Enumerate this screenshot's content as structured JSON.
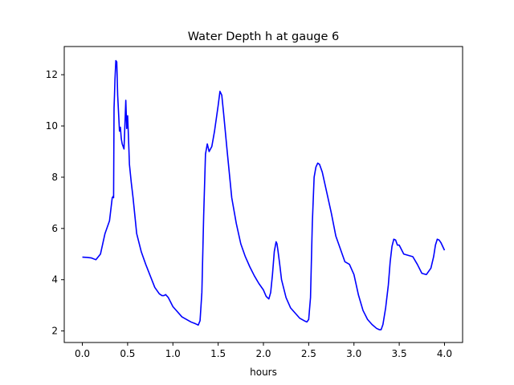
{
  "chart_data": {
    "type": "line",
    "title": "Water Depth h at gauge 6",
    "xlabel": "hours",
    "ylabel": "",
    "xlim": [
      -0.2,
      4.2
    ],
    "ylim": [
      1.55,
      13.1
    ],
    "xticks": [
      0.0,
      0.5,
      1.0,
      1.5,
      2.0,
      2.5,
      3.0,
      3.5,
      4.0
    ],
    "xtick_labels": [
      "0.0",
      "0.5",
      "1.0",
      "1.5",
      "2.0",
      "2.5",
      "3.0",
      "3.5",
      "4.0"
    ],
    "yticks": [
      2,
      4,
      6,
      8,
      10,
      12
    ],
    "ytick_labels": [
      "2",
      "4",
      "6",
      "8",
      "10",
      "12"
    ],
    "grid": false,
    "series": [
      {
        "color": "#0000ff",
        "x": [
          0.0,
          0.05,
          0.1,
          0.15,
          0.2,
          0.25,
          0.3,
          0.33,
          0.34,
          0.345,
          0.35,
          0.355,
          0.36,
          0.37,
          0.38,
          0.39,
          0.4,
          0.41,
          0.42,
          0.43,
          0.44,
          0.46,
          0.48,
          0.49,
          0.5,
          0.51,
          0.52,
          0.54,
          0.56,
          0.58,
          0.6,
          0.65,
          0.7,
          0.8,
          0.85,
          0.88,
          0.9,
          0.92,
          0.95,
          1.0,
          1.1,
          1.2,
          1.25,
          1.28,
          1.3,
          1.32,
          1.34,
          1.36,
          1.38,
          1.4,
          1.43,
          1.46,
          1.5,
          1.52,
          1.54,
          1.56,
          1.6,
          1.65,
          1.7,
          1.75,
          1.8,
          1.85,
          1.9,
          1.95,
          2.0,
          2.03,
          2.06,
          2.08,
          2.1,
          2.12,
          2.14,
          2.15,
          2.16,
          2.18,
          2.2,
          2.25,
          2.3,
          2.35,
          2.4,
          2.45,
          2.48,
          2.5,
          2.52,
          2.54,
          2.56,
          2.58,
          2.6,
          2.62,
          2.65,
          2.7,
          2.75,
          2.8,
          2.85,
          2.9,
          2.95,
          3.0,
          3.05,
          3.1,
          3.15,
          3.2,
          3.25,
          3.28,
          3.3,
          3.32,
          3.35,
          3.38,
          3.4,
          3.42,
          3.44,
          3.46,
          3.48,
          3.5,
          3.55,
          3.6,
          3.65,
          3.7,
          3.75,
          3.8,
          3.85,
          3.88,
          3.9,
          3.92,
          3.94,
          3.96,
          4.0
        ],
        "y": [
          4.88,
          4.87,
          4.85,
          4.78,
          5.0,
          5.8,
          6.3,
          7.2,
          7.25,
          7.2,
          10.7,
          11.2,
          11.8,
          12.55,
          12.5,
          11.2,
          10.5,
          9.8,
          9.95,
          9.5,
          9.3,
          9.1,
          11.0,
          9.9,
          10.4,
          9.5,
          8.5,
          7.8,
          7.2,
          6.5,
          5.8,
          5.1,
          4.6,
          3.7,
          3.45,
          3.38,
          3.38,
          3.42,
          3.3,
          2.95,
          2.55,
          2.35,
          2.28,
          2.23,
          2.4,
          3.5,
          6.5,
          8.9,
          9.3,
          9.0,
          9.2,
          9.8,
          10.8,
          11.35,
          11.2,
          10.5,
          9.0,
          7.2,
          6.2,
          5.4,
          4.9,
          4.5,
          4.15,
          3.85,
          3.6,
          3.35,
          3.25,
          3.5,
          4.2,
          5.1,
          5.48,
          5.4,
          5.15,
          4.6,
          4.0,
          3.3,
          2.9,
          2.7,
          2.5,
          2.4,
          2.35,
          2.45,
          3.3,
          6.2,
          8.0,
          8.4,
          8.55,
          8.5,
          8.2,
          7.4,
          6.6,
          5.7,
          5.2,
          4.7,
          4.6,
          4.2,
          3.4,
          2.8,
          2.45,
          2.25,
          2.1,
          2.05,
          2.05,
          2.25,
          2.9,
          3.8,
          4.7,
          5.3,
          5.58,
          5.55,
          5.35,
          5.35,
          5.0,
          4.95,
          4.9,
          4.6,
          4.25,
          4.2,
          4.45,
          4.9,
          5.35,
          5.58,
          5.55,
          5.45,
          5.15
        ]
      }
    ]
  }
}
